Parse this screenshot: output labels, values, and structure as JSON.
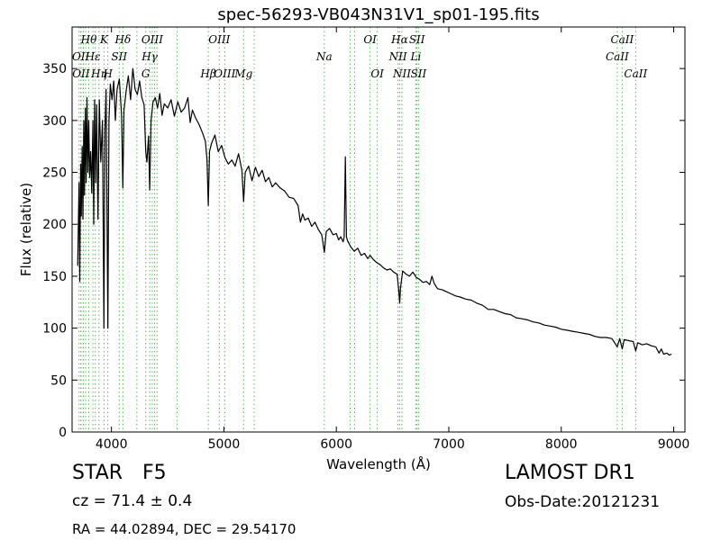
{
  "chart_data": {
    "type": "line",
    "title": "spec-56293-VB043N31V1_sp01-195.fits",
    "xlabel": "Wavelength (Å)",
    "ylabel": "Flux (relative)",
    "xlim": [
      3650,
      9100
    ],
    "ylim": [
      0,
      390
    ],
    "xticks": [
      4000,
      5000,
      6000,
      7000,
      8000,
      9000
    ],
    "yticks": [
      0,
      50,
      100,
      150,
      200,
      250,
      300,
      350
    ],
    "grid": false,
    "series": [
      {
        "line_color": "#000000",
        "points": [
          [
            3700,
            160
          ],
          [
            3712,
            240
          ],
          [
            3718,
            145
          ],
          [
            3726,
            258
          ],
          [
            3732,
            208
          ],
          [
            3740,
            275
          ],
          [
            3746,
            205
          ],
          [
            3754,
            300
          ],
          [
            3760,
            228
          ],
          [
            3768,
            312
          ],
          [
            3775,
            240
          ],
          [
            3782,
            322
          ],
          [
            3790,
            250
          ],
          [
            3798,
            300
          ],
          [
            3806,
            245
          ],
          [
            3815,
            270
          ],
          [
            3825,
            230
          ],
          [
            3835,
            300
          ],
          [
            3842,
            200
          ],
          [
            3850,
            320
          ],
          [
            3860,
            240
          ],
          [
            3868,
            315
          ],
          [
            3880,
            205
          ],
          [
            3892,
            320
          ],
          [
            3905,
            260
          ],
          [
            3920,
            300
          ],
          [
            3933,
            100
          ],
          [
            3942,
            290
          ],
          [
            3952,
            330
          ],
          [
            3968,
            100
          ],
          [
            3978,
            300
          ],
          [
            3990,
            335
          ],
          [
            4005,
            320
          ],
          [
            4020,
            338
          ],
          [
            4035,
            300
          ],
          [
            4050,
            330
          ],
          [
            4070,
            340
          ],
          [
            4090,
            305
          ],
          [
            4101,
            235
          ],
          [
            4112,
            310
          ],
          [
            4130,
            328
          ],
          [
            4150,
            343
          ],
          [
            4170,
            320
          ],
          [
            4190,
            350
          ],
          [
            4210,
            330
          ],
          [
            4230,
            325
          ],
          [
            4250,
            338
          ],
          [
            4270,
            322
          ],
          [
            4290,
            315
          ],
          [
            4305,
            270
          ],
          [
            4315,
            260
          ],
          [
            4330,
            285
          ],
          [
            4340,
            233
          ],
          [
            4352,
            300
          ],
          [
            4370,
            318
          ],
          [
            4390,
            322
          ],
          [
            4410,
            312
          ],
          [
            4430,
            326
          ],
          [
            4450,
            305
          ],
          [
            4470,
            316
          ],
          [
            4500,
            312
          ],
          [
            4530,
            320
          ],
          [
            4560,
            304
          ],
          [
            4590,
            318
          ],
          [
            4620,
            308
          ],
          [
            4650,
            312
          ],
          [
            4680,
            322
          ],
          [
            4700,
            298
          ],
          [
            4720,
            310
          ],
          [
            4750,
            302
          ],
          [
            4780,
            296
          ],
          [
            4810,
            288
          ],
          [
            4835,
            280
          ],
          [
            4850,
            262
          ],
          [
            4861,
            218
          ],
          [
            4872,
            270
          ],
          [
            4890,
            278
          ],
          [
            4920,
            286
          ],
          [
            4950,
            270
          ],
          [
            4980,
            276
          ],
          [
            5010,
            264
          ],
          [
            5040,
            258
          ],
          [
            5070,
            262
          ],
          [
            5100,
            256
          ],
          [
            5130,
            268
          ],
          [
            5160,
            252
          ],
          [
            5175,
            222
          ],
          [
            5190,
            250
          ],
          [
            5220,
            256
          ],
          [
            5250,
            242
          ],
          [
            5280,
            255
          ],
          [
            5310,
            246
          ],
          [
            5340,
            252
          ],
          [
            5370,
            241
          ],
          [
            5400,
            245
          ],
          [
            5430,
            236
          ],
          [
            5460,
            240
          ],
          [
            5500,
            235
          ],
          [
            5540,
            232
          ],
          [
            5580,
            226
          ],
          [
            5620,
            225
          ],
          [
            5660,
            218
          ],
          [
            5680,
            202
          ],
          [
            5700,
            210
          ],
          [
            5720,
            204
          ],
          [
            5750,
            206
          ],
          [
            5780,
            198
          ],
          [
            5810,
            202
          ],
          [
            5840,
            195
          ],
          [
            5870,
            190
          ],
          [
            5893,
            173
          ],
          [
            5910,
            193
          ],
          [
            5940,
            196
          ],
          [
            5970,
            190
          ],
          [
            6000,
            191
          ],
          [
            6020,
            185
          ],
          [
            6040,
            188
          ],
          [
            6060,
            183
          ],
          [
            6070,
            188
          ],
          [
            6080,
            265
          ],
          [
            6090,
            188
          ],
          [
            6100,
            184
          ],
          [
            6130,
            178
          ],
          [
            6160,
            174
          ],
          [
            6190,
            177
          ],
          [
            6220,
            170
          ],
          [
            6250,
            172
          ],
          [
            6280,
            167
          ],
          [
            6300,
            170
          ],
          [
            6330,
            166
          ],
          [
            6360,
            163
          ],
          [
            6390,
            161
          ],
          [
            6420,
            158
          ],
          [
            6450,
            156
          ],
          [
            6480,
            157
          ],
          [
            6510,
            154
          ],
          [
            6540,
            152
          ],
          [
            6556,
            135
          ],
          [
            6563,
            124
          ],
          [
            6570,
            138
          ],
          [
            6590,
            155
          ],
          [
            6620,
            152
          ],
          [
            6650,
            150
          ],
          [
            6680,
            154
          ],
          [
            6710,
            149
          ],
          [
            6740,
            147
          ],
          [
            6770,
            144
          ],
          [
            6800,
            145
          ],
          [
            6830,
            142
          ],
          [
            6850,
            150
          ],
          [
            6870,
            143
          ],
          [
            6900,
            138
          ],
          [
            6940,
            137
          ],
          [
            6980,
            135
          ],
          [
            7020,
            133
          ],
          [
            7060,
            131
          ],
          [
            7100,
            130
          ],
          [
            7150,
            128
          ],
          [
            7200,
            127
          ],
          [
            7250,
            124
          ],
          [
            7300,
            122
          ],
          [
            7350,
            118
          ],
          [
            7400,
            118
          ],
          [
            7450,
            116
          ],
          [
            7500,
            114
          ],
          [
            7550,
            113
          ],
          [
            7600,
            110
          ],
          [
            7650,
            109
          ],
          [
            7700,
            108
          ],
          [
            7750,
            106
          ],
          [
            7800,
            105
          ],
          [
            7850,
            103
          ],
          [
            7900,
            102
          ],
          [
            7950,
            101
          ],
          [
            8000,
            99
          ],
          [
            8050,
            98
          ],
          [
            8100,
            97
          ],
          [
            8150,
            96
          ],
          [
            8200,
            95
          ],
          [
            8250,
            94
          ],
          [
            8300,
            92
          ],
          [
            8350,
            91
          ],
          [
            8400,
            91
          ],
          [
            8450,
            90
          ],
          [
            8498,
            82
          ],
          [
            8520,
            90
          ],
          [
            8542,
            80
          ],
          [
            8560,
            89
          ],
          [
            8600,
            88
          ],
          [
            8640,
            87
          ],
          [
            8662,
            78
          ],
          [
            8680,
            86
          ],
          [
            8720,
            84
          ],
          [
            8760,
            85
          ],
          [
            8800,
            83
          ],
          [
            8840,
            82
          ],
          [
            8870,
            76
          ],
          [
            8890,
            80
          ],
          [
            8910,
            75
          ],
          [
            8940,
            76
          ],
          [
            8960,
            74
          ],
          [
            8980,
            75
          ]
        ]
      }
    ],
    "line_markers": {
      "color": "#55bb55",
      "lines": [
        {
          "label": "Hθ",
          "x": 3798,
          "row": 0
        },
        {
          "label": "K",
          "x": 3934,
          "row": 0
        },
        {
          "label": "Hδ",
          "x": 4102,
          "row": 0
        },
        {
          "label": "OIII",
          "x": 4363,
          "row": 0
        },
        {
          "label": "OIII",
          "x": 4959,
          "row": 0
        },
        {
          "label": "OI",
          "x": 6300,
          "row": 0
        },
        {
          "label": "Hα",
          "x": 6563,
          "row": 0
        },
        {
          "label": "SII",
          "x": 6717,
          "row": 0
        },
        {
          "label": "CaII",
          "x": 8542,
          "row": 0
        },
        {
          "label": "OII",
          "x": 3727,
          "row": 1
        },
        {
          "label": "Hε",
          "x": 3835,
          "row": 1
        },
        {
          "label": "SII",
          "x": 4069,
          "row": 1
        },
        {
          "label": "Hγ",
          "x": 4340,
          "row": 1
        },
        {
          "label": "Na",
          "x": 5893,
          "row": 1
        },
        {
          "label": "NII",
          "x": 6548,
          "row": 1
        },
        {
          "label": "Li",
          "x": 6707,
          "row": 1
        },
        {
          "label": "CaII",
          "x": 8498,
          "row": 1
        },
        {
          "label": "OII",
          "x": 3729,
          "row": 2
        },
        {
          "label": "Hη",
          "x": 3889,
          "row": 2
        },
        {
          "label": "H",
          "x": 3968,
          "row": 2
        },
        {
          "label": "G",
          "x": 4305,
          "row": 2
        },
        {
          "label": "Hβ",
          "x": 4861,
          "row": 2
        },
        {
          "label": "OIII",
          "x": 5007,
          "row": 2
        },
        {
          "label": "Mg",
          "x": 5175,
          "row": 2
        },
        {
          "label": "OI",
          "x": 6364,
          "row": 2
        },
        {
          "label": "NII",
          "x": 6583,
          "row": 2
        },
        {
          "label": "SII",
          "x": 6731,
          "row": 2
        },
        {
          "label": "CaII",
          "x": 8662,
          "row": 2
        }
      ],
      "extra_lines": [
        3712,
        3750,
        3771,
        3856,
        4226,
        4383,
        4405,
        4584,
        5269,
        6122,
        6162
      ]
    }
  },
  "info": {
    "class": "STAR",
    "subclass": "F5",
    "cz": "cz = 71.4  ± 0.4",
    "radec": "RA = 44.02894, DEC = 29.54170",
    "survey": "LAMOST DR1",
    "obsdate": "Obs-Date:20121231"
  }
}
